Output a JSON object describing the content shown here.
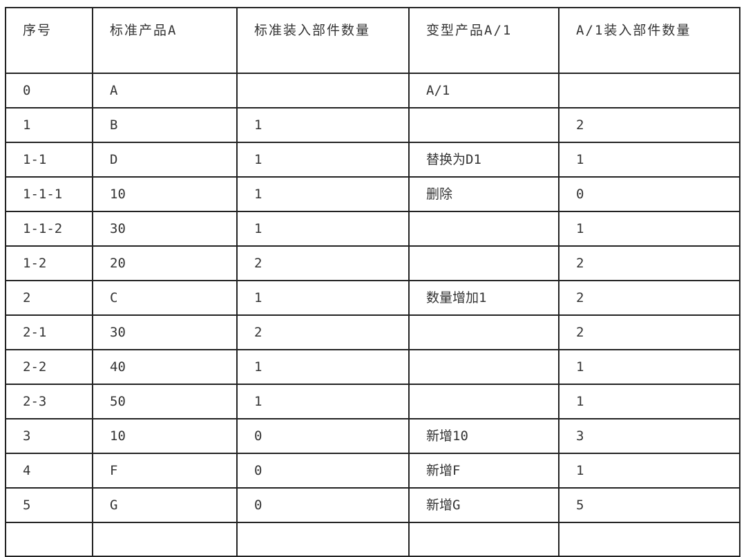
{
  "table": {
    "headers": [
      "序号",
      "标准产品A",
      "标准装入部件数量",
      "变型产品A/1",
      "A/1装入部件数量"
    ],
    "rows": [
      [
        "0",
        "A",
        "",
        "A/1",
        ""
      ],
      [
        "1",
        "B",
        "1",
        "",
        "2"
      ],
      [
        "1-1",
        "D",
        "1",
        "替换为D1",
        "1"
      ],
      [
        "1-1-1",
        "10",
        "1",
        "删除",
        "0"
      ],
      [
        "1-1-2",
        "30",
        "1",
        "",
        "1"
      ],
      [
        "1-2",
        "20",
        "2",
        "",
        "2"
      ],
      [
        "2",
        "C",
        "1",
        "数量增加1",
        "2"
      ],
      [
        "2-1",
        "30",
        "2",
        "",
        "2"
      ],
      [
        "2-2",
        "40",
        "1",
        "",
        "1"
      ],
      [
        "2-3",
        "50",
        "1",
        "",
        "1"
      ],
      [
        "3",
        "10",
        "0",
        "新增10",
        "3"
      ],
      [
        "4",
        "F",
        "0",
        "新增F",
        "1"
      ],
      [
        "5",
        "G",
        "0",
        "新增G",
        "5"
      ],
      [
        "",
        "",
        "",
        "",
        ""
      ]
    ]
  }
}
